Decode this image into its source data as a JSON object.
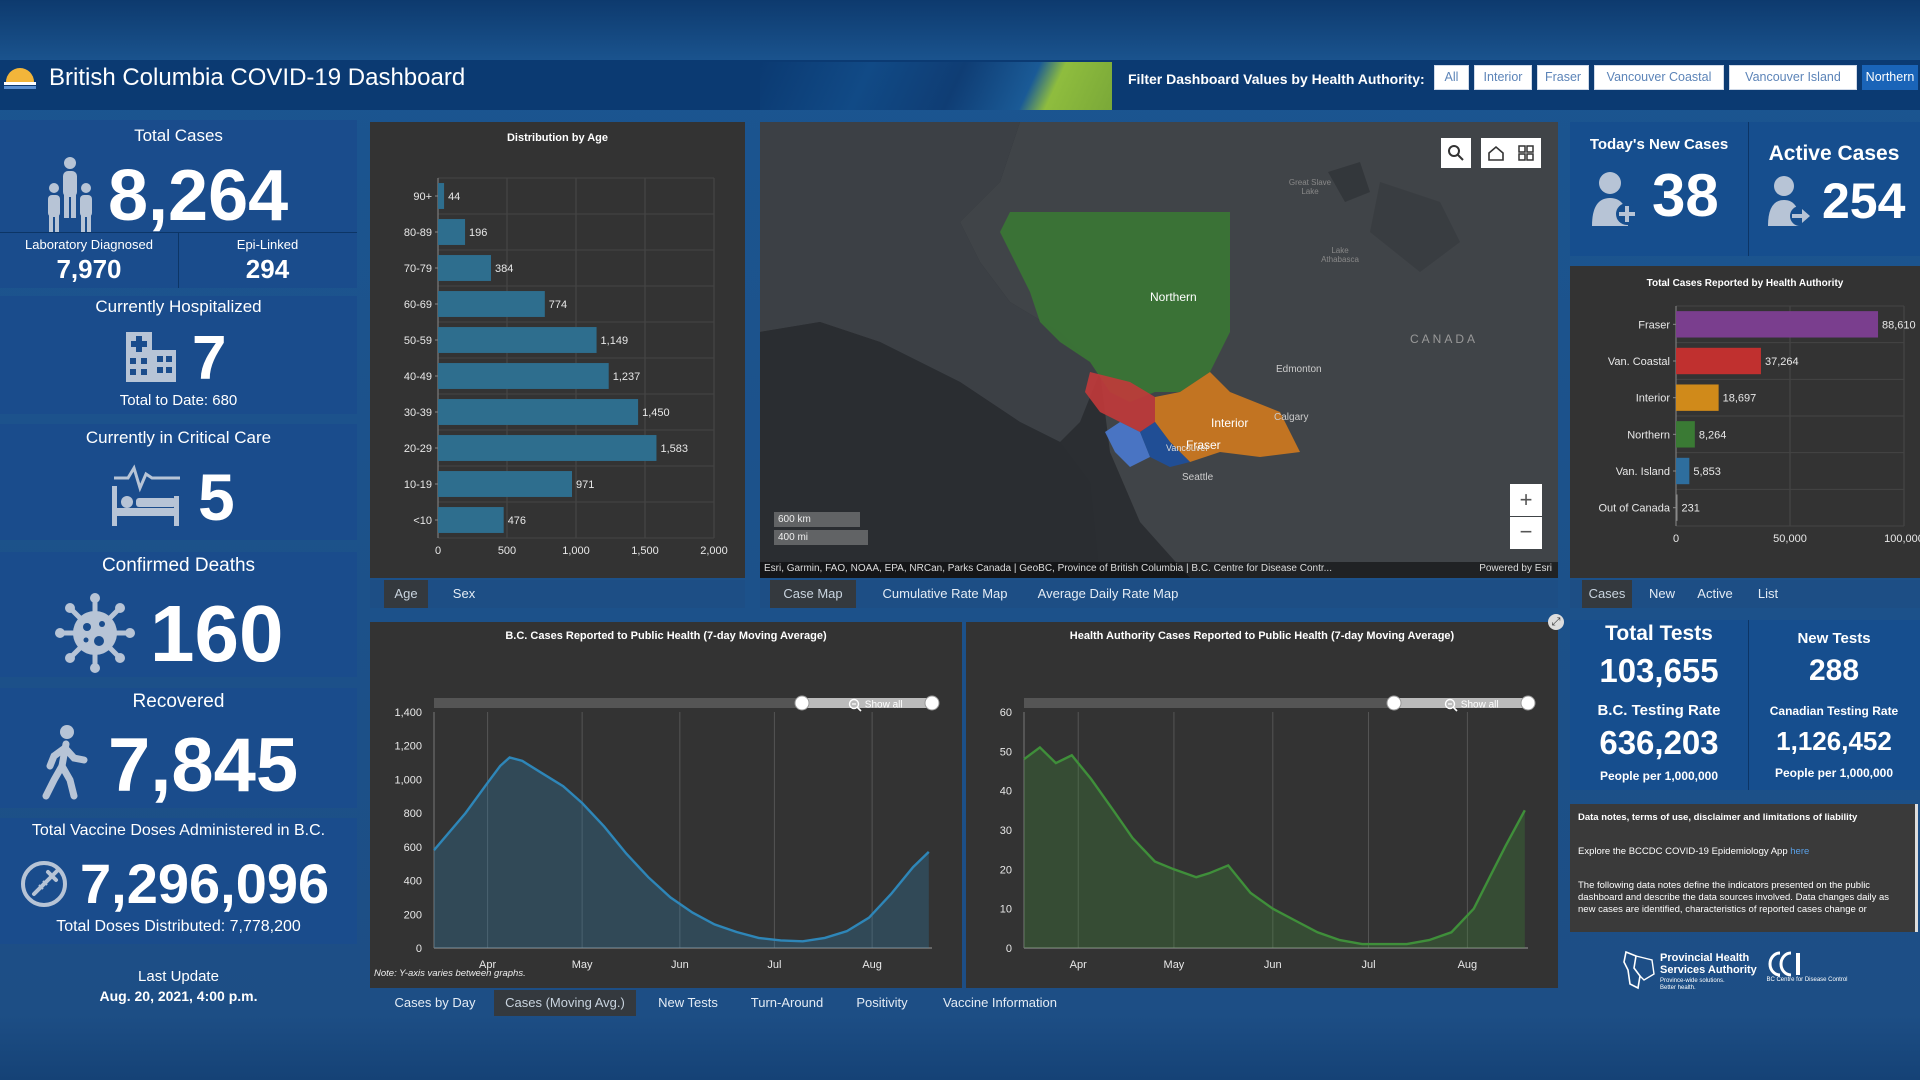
{
  "header": {
    "title": "British Columbia COVID-19 Dashboard",
    "filter_label": "Filter Dashboard Values by Health Authority:",
    "filters": [
      {
        "label": "All",
        "selected": false
      },
      {
        "label": "Interior",
        "selected": false
      },
      {
        "label": "Fraser",
        "selected": false
      },
      {
        "label": "Vancouver Coastal",
        "selected": false
      },
      {
        "label": "Vancouver Island",
        "selected": false
      },
      {
        "label": "Northern",
        "selected": true
      }
    ]
  },
  "left": {
    "total_cases": {
      "title": "Total Cases",
      "value": "8,264",
      "lab_label": "Laboratory Diagnosed",
      "lab_value": "7,970",
      "epi_label": "Epi-Linked",
      "epi_value": "294"
    },
    "hospitalized": {
      "title": "Currently Hospitalized",
      "value": "7",
      "sub": "Total to Date: 680"
    },
    "critical": {
      "title": "Currently in Critical Care",
      "value": "5"
    },
    "deaths": {
      "title": "Confirmed Deaths",
      "value": "160"
    },
    "recovered": {
      "title": "Recovered",
      "value": "7,845"
    },
    "vaccine": {
      "title": "Total Vaccine Doses Administered in B.C.",
      "value": "7,296,096",
      "sub": "Total Doses Distributed: 7,778,200"
    },
    "update": {
      "label": "Last Update",
      "value": "Aug. 20, 2021, 4:00 p.m."
    }
  },
  "age_chart": {
    "tabs": [
      {
        "label": "Age",
        "selected": true
      },
      {
        "label": "Sex",
        "selected": false
      }
    ],
    "chart_data": {
      "type": "bar",
      "orientation": "horizontal",
      "title": "Distribution by Age",
      "categories": [
        "90+",
        "80-89",
        "70-79",
        "60-69",
        "50-59",
        "40-49",
        "30-39",
        "20-29",
        "10-19",
        "<10"
      ],
      "values": [
        44,
        196,
        384,
        774,
        1149,
        1237,
        1450,
        1583,
        971,
        476
      ],
      "value_labels": [
        "44",
        "196",
        "384",
        "774",
        "1,149",
        "1,237",
        "1,450",
        "1,583",
        "971",
        "476"
      ],
      "xlim": [
        0,
        2000
      ],
      "xticks": [
        "0",
        "500",
        "1,000",
        "1,500",
        "2,000"
      ],
      "color": "#2e6e8e"
    }
  },
  "map": {
    "tabs": [
      {
        "label": "Case Map",
        "selected": true
      },
      {
        "label": "Cumulative Rate Map",
        "selected": false
      },
      {
        "label": "Average Daily Rate Map",
        "selected": false
      }
    ],
    "labels": {
      "northern": "Northern",
      "interior": "Interior",
      "fraser": "Fraser",
      "vancouver": "Vancouver",
      "seattle": "Seattle",
      "edmonton": "Edmonton",
      "calgary": "Calgary",
      "canada": "CANADA",
      "great_slave": "Great Slave Lake",
      "athabasca": "Lake Athabasca"
    },
    "scale_km": "600 km",
    "scale_mi": "400 mi",
    "attribution": "Esri, Garmin, FAO, NOAA, EPA, NRCan, Parks Canada | GeoBC, Province of British Columbia | B.C. Centre for Disease Contr...",
    "powered": "Powered by Esri",
    "colors": {
      "northern": "#3a7a34",
      "interior": "#d07a1e",
      "fraser": "#1f4f9a",
      "coastal": "#c23a3a",
      "island": "#4a7ad0"
    }
  },
  "right_top": {
    "new_cases": {
      "title": "Today's New Cases",
      "value": "38"
    },
    "active_cases": {
      "title": "Active Cases",
      "value": "254"
    }
  },
  "ha_chart": {
    "tabs": [
      {
        "label": "Cases",
        "selected": true
      },
      {
        "label": "New",
        "selected": false
      },
      {
        "label": "Active",
        "selected": false
      },
      {
        "label": "List",
        "selected": false
      }
    ],
    "chart_data": {
      "type": "bar",
      "orientation": "horizontal",
      "title": "Total Cases Reported by Health Authority",
      "categories": [
        "Fraser",
        "Van. Coastal",
        "Interior",
        "Northern",
        "Van. Island",
        "Out of Canada"
      ],
      "values": [
        88610,
        37264,
        18697,
        8264,
        5853,
        231
      ],
      "value_labels": [
        "88,610",
        "37,264",
        "18,697",
        "8,264",
        "5,853",
        "231"
      ],
      "colors": [
        "#7a3e8e",
        "#c0302f",
        "#d08a1a",
        "#3a7a34",
        "#2e6e9e",
        "#888888"
      ],
      "xlim": [
        0,
        100000
      ],
      "xticks": [
        "0",
        "50,000",
        "100,000"
      ]
    }
  },
  "tests": {
    "total_label": "Total Tests",
    "total_value": "103,655",
    "new_label": "New Tests",
    "new_value": "288",
    "bc_rate_label": "B.C. Testing Rate",
    "bc_rate_value": "636,203",
    "bc_rate_sub": "People per 1,000,000",
    "ca_rate_label": "Canadian Testing Rate",
    "ca_rate_value": "1,126,452",
    "ca_rate_sub": "People per 1,000,000"
  },
  "notes": {
    "title": "Data notes, terms of use, disclaimer and limitations of liability",
    "explore": "Explore the BCCDC COVID-19 Epidemiology App",
    "link": "here",
    "body": "The following data notes define the indicators presented on the public dashboard and describe the data sources involved. Data changes daily as new cases are identified, characteristics of reported cases change or"
  },
  "logos": {
    "phsa_line1": "Provincial Health",
    "phsa_line2": "Services Authority",
    "phsa_tag": "Province-wide solutions. Better health.",
    "bccdc": "BC Centre for Disease Control"
  },
  "bottom": {
    "show_all": "Show all",
    "note": "Note: Y-axis varies between graphs.",
    "tabs": [
      {
        "label": "Cases by Day",
        "selected": false
      },
      {
        "label": "Cases (Moving Avg.)",
        "selected": true
      },
      {
        "label": "New Tests",
        "selected": false
      },
      {
        "label": "Turn-Around",
        "selected": false
      },
      {
        "label": "Positivity",
        "selected": false
      },
      {
        "label": "Vaccine Information",
        "selected": false
      }
    ],
    "bc_chart": {
      "type": "area",
      "title": "B.C. Cases Reported to Public Health (7-day Moving Average)",
      "x_labels": [
        "Apr",
        "May",
        "Jun",
        "Jul",
        "Aug"
      ],
      "ylim": [
        0,
        1400
      ],
      "yticks": [
        "0",
        "200",
        "400",
        "600",
        "800",
        "1,000",
        "1,200",
        "1,400"
      ],
      "x": [
        "2021-03-15",
        "2021-03-25",
        "2021-04-01",
        "2021-04-05",
        "2021-04-08",
        "2021-04-12",
        "2021-04-18",
        "2021-04-25",
        "2021-05-01",
        "2021-05-08",
        "2021-05-15",
        "2021-05-22",
        "2021-05-29",
        "2021-06-05",
        "2021-06-12",
        "2021-06-19",
        "2021-06-26",
        "2021-07-03",
        "2021-07-10",
        "2021-07-17",
        "2021-07-24",
        "2021-07-31",
        "2021-08-07",
        "2021-08-14",
        "2021-08-19"
      ],
      "values": [
        580,
        800,
        980,
        1080,
        1130,
        1110,
        1040,
        960,
        860,
        720,
        560,
        420,
        300,
        210,
        140,
        95,
        60,
        45,
        40,
        60,
        100,
        180,
        320,
        480,
        570
      ],
      "color": "#2e86b8"
    },
    "ha_chart": {
      "type": "area",
      "title": "Health Authority Cases Reported to Public Health (7-day Moving Average)",
      "x_labels": [
        "Apr",
        "May",
        "Jun",
        "Jul",
        "Aug"
      ],
      "ylim": [
        0,
        60
      ],
      "yticks": [
        "0",
        "10",
        "20",
        "30",
        "40",
        "50",
        "60"
      ],
      "x": [
        "2021-03-15",
        "2021-03-20",
        "2021-03-25",
        "2021-03-30",
        "2021-04-05",
        "2021-04-12",
        "2021-04-18",
        "2021-04-25",
        "2021-05-01",
        "2021-05-08",
        "2021-05-12",
        "2021-05-18",
        "2021-05-25",
        "2021-06-01",
        "2021-06-08",
        "2021-06-15",
        "2021-06-22",
        "2021-06-29",
        "2021-07-06",
        "2021-07-13",
        "2021-07-20",
        "2021-07-27",
        "2021-08-03",
        "2021-08-08",
        "2021-08-13",
        "2021-08-19"
      ],
      "values": [
        48,
        51,
        47,
        49,
        43,
        35,
        28,
        22,
        20,
        18,
        19,
        21,
        14,
        10,
        7,
        4,
        2,
        1,
        1,
        1,
        2,
        4,
        10,
        18,
        26,
        35
      ],
      "color": "#3f8f3a"
    }
  }
}
